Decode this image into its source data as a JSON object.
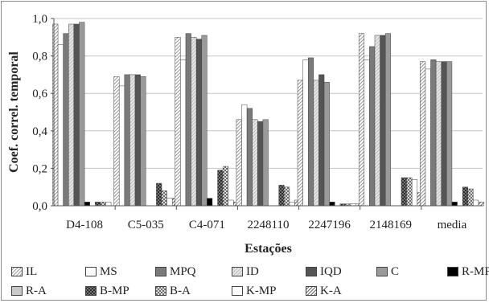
{
  "chart_data": {
    "type": "bar",
    "title": "",
    "xlabel": "Estações",
    "ylabel": "Coef. correl. temporal",
    "ylim": [
      0,
      1.0
    ],
    "yticks": [
      "0,0",
      "0,2",
      "0,4",
      "0,6",
      "0,8",
      "1,0"
    ],
    "grid": true,
    "legend_position": "bottom",
    "categories": [
      "D4-108",
      "C5-035",
      "C4-071",
      "2248110",
      "2247196",
      "2148169",
      "media"
    ],
    "series": [
      {
        "name": "IL",
        "pattern": "diag",
        "values": [
          0.97,
          0.69,
          0.9,
          0.46,
          0.67,
          0.92,
          0.77
        ]
      },
      {
        "name": "MS",
        "pattern": "white",
        "values": [
          0.86,
          0.64,
          0.78,
          0.54,
          0.78,
          0.78,
          0.73
        ]
      },
      {
        "name": "MPQ",
        "pattern": "dgray",
        "values": [
          0.92,
          0.7,
          0.92,
          0.52,
          0.79,
          0.85,
          0.78
        ]
      },
      {
        "name": "ID",
        "pattern": "diag-light",
        "values": [
          0.97,
          0.7,
          0.9,
          0.46,
          0.67,
          0.91,
          0.77
        ]
      },
      {
        "name": "IQD",
        "pattern": "darker",
        "values": [
          0.97,
          0.7,
          0.89,
          0.45,
          0.7,
          0.91,
          0.77
        ]
      },
      {
        "name": "C",
        "pattern": "mgray",
        "values": [
          0.98,
          0.69,
          0.91,
          0.46,
          0.66,
          0.92,
          0.77
        ]
      },
      {
        "name": "R-MP",
        "pattern": "black",
        "values": [
          0.02,
          0.0,
          0.04,
          0.0,
          0.02,
          0.0,
          0.02
        ]
      },
      {
        "name": "R-A",
        "pattern": "lgray",
        "values": [
          0.0,
          0.0,
          0.0,
          0.0,
          0.0,
          0.0,
          0.0
        ]
      },
      {
        "name": "B-MP",
        "pattern": "check",
        "values": [
          0.02,
          0.12,
          0.19,
          0.11,
          0.01,
          0.15,
          0.1
        ]
      },
      {
        "name": "B-A",
        "pattern": "hatch",
        "values": [
          0.02,
          0.08,
          0.21,
          0.1,
          0.01,
          0.15,
          0.09
        ]
      },
      {
        "name": "K-MP",
        "pattern": "white",
        "values": [
          0.02,
          0.04,
          0.03,
          0.02,
          0.01,
          0.14,
          0.03
        ]
      },
      {
        "name": "K-A",
        "pattern": "diag-dark",
        "values": [
          0.0,
          0.04,
          0.02,
          0.03,
          0.01,
          0.07,
          0.02
        ]
      }
    ]
  }
}
